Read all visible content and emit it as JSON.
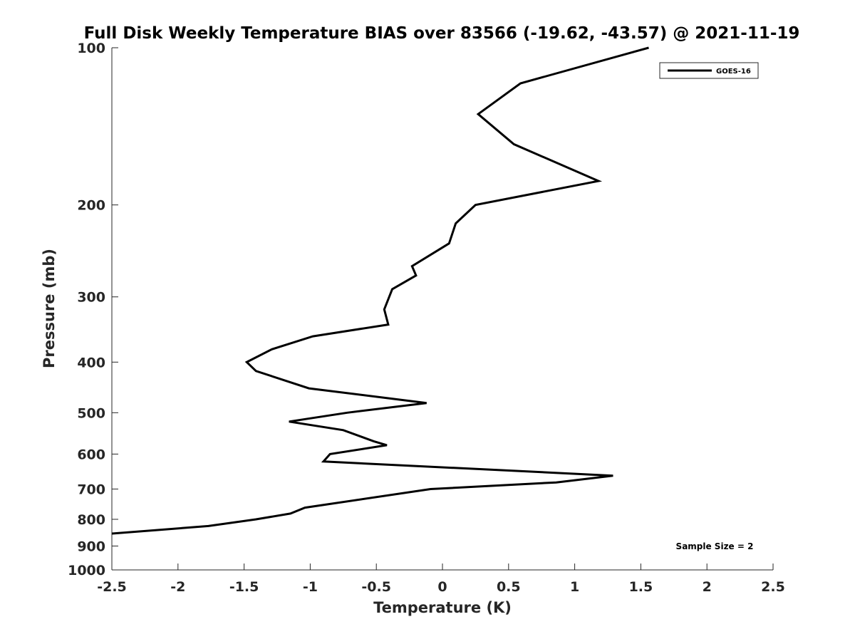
{
  "chart_data": {
    "type": "line",
    "title": "Full Disk Weekly Temperature BIAS over 83566 (-19.62, -43.57) @ 2021-11-19",
    "xlabel": "Temperature (K)",
    "ylabel": "Pressure (mb)",
    "xlim": [
      -2.5,
      2.5
    ],
    "ylim": [
      100,
      1000
    ],
    "y_scale": "log",
    "y_reversed": true,
    "x_ticks": [
      -2.5,
      -2,
      -1.5,
      -1,
      -0.5,
      0,
      0.5,
      1,
      1.5,
      2,
      2.5
    ],
    "x_tick_labels": [
      "-2.5",
      "-2",
      "-1.5",
      "-1",
      "-0.5",
      "0",
      "0.5",
      "1",
      "1.5",
      "2",
      "2.5"
    ],
    "y_ticks": [
      100,
      200,
      300,
      400,
      500,
      600,
      700,
      800,
      900,
      1000
    ],
    "y_tick_labels": [
      "100",
      "200",
      "300",
      "400",
      "500",
      "600",
      "700",
      "800",
      "900",
      "1000"
    ],
    "grid": false,
    "legend_position": "top-right",
    "annotation": "Sample Size = 2",
    "line_color": "#000000",
    "series": [
      {
        "name": "GOES-16",
        "x": [
          1.56,
          0.59,
          0.27,
          0.54,
          1.18,
          0.25,
          0.1,
          0.05,
          -0.23,
          -0.2,
          -0.38,
          -0.44,
          -0.41,
          -0.98,
          -1.29,
          -1.48,
          -1.41,
          -1.01,
          -0.12,
          -0.72,
          -1.16,
          -0.75,
          -0.52,
          -0.42,
          -0.85,
          -0.9,
          1.29,
          0.86,
          -0.09,
          -1.04,
          -1.15,
          -1.41,
          -1.77,
          -2.5
        ],
        "y": [
          100,
          117,
          134,
          153,
          180,
          200,
          217,
          237,
          262,
          273,
          290,
          317,
          339,
          357,
          378,
          400,
          416,
          449,
          479,
          500,
          520,
          540,
          567,
          577,
          600,
          620,
          660,
          680,
          700,
          760,
          780,
          800,
          824,
          852
        ]
      }
    ]
  }
}
